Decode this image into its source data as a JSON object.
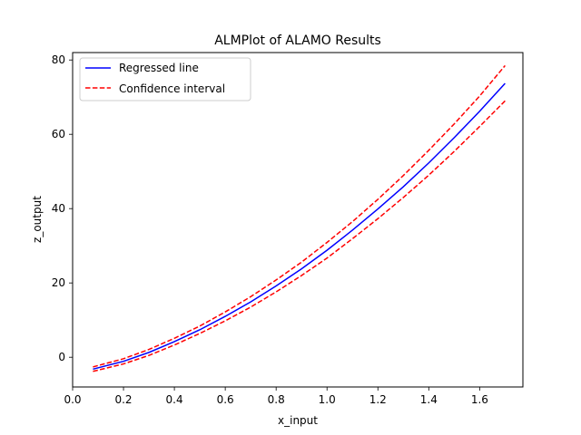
{
  "chart_data": {
    "type": "line",
    "title": "ALMPlot of ALAMO Results",
    "xlabel": "x_input",
    "ylabel": "z_output",
    "xlim": [
      0.0,
      1.77
    ],
    "ylim": [
      -8.0,
      82.0
    ],
    "xticks": [
      0.0,
      0.2,
      0.4,
      0.6,
      0.8,
      1.0,
      1.2,
      1.4,
      1.6
    ],
    "xtick_labels": [
      "0.0",
      "0.2",
      "0.4",
      "0.6",
      "0.8",
      "1.0",
      "1.2",
      "1.4",
      "1.6"
    ],
    "yticks": [
      0,
      20,
      40,
      60,
      80
    ],
    "ytick_labels": [
      "0",
      "20",
      "40",
      "60",
      "80"
    ],
    "grid": false,
    "legend_position": "top-left",
    "x": [
      0.08,
      0.2,
      0.3,
      0.4,
      0.5,
      0.6,
      0.7,
      0.8,
      0.9,
      1.0,
      1.1,
      1.2,
      1.3,
      1.4,
      1.5,
      1.6,
      1.7
    ],
    "series": [
      {
        "name": "Regressed line",
        "color": "#0000ff",
        "dash": "solid",
        "values": [
          -3.2,
          -1.1,
          1.3,
          4.2,
          7.4,
          11.0,
          14.9,
          19.2,
          23.8,
          28.8,
          34.2,
          39.9,
          45.9,
          52.3,
          59.1,
          66.2,
          73.7
        ]
      },
      {
        "name": "Confidence interval",
        "color": "#ff0000",
        "dash": "dashed",
        "values": [
          -2.6,
          -0.4,
          2.1,
          5.1,
          8.4,
          12.2,
          16.3,
          20.8,
          25.6,
          30.9,
          36.5,
          42.5,
          48.9,
          55.7,
          62.8,
          70.3,
          78.5
        ]
      },
      {
        "name": "",
        "color": "#ff0000",
        "dash": "dashed",
        "values": [
          -3.8,
          -1.8,
          0.5,
          3.3,
          6.4,
          9.8,
          13.5,
          17.6,
          22.0,
          26.7,
          31.9,
          37.3,
          43.0,
          49.0,
          55.4,
          62.1,
          69.0
        ]
      }
    ]
  }
}
